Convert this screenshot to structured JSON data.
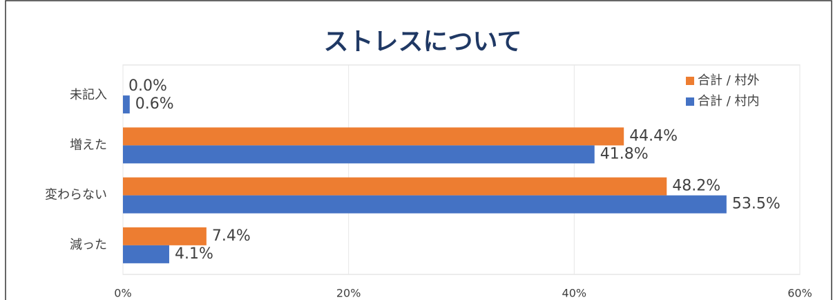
{
  "chart_data": {
    "type": "hbar",
    "title": "ストレスについて",
    "categories": [
      "未記入",
      "増えた",
      "変わらない",
      "減った"
    ],
    "series": [
      {
        "name": "合計 / 村外",
        "color": "#ed7d31",
        "values": [
          0.0,
          44.4,
          48.2,
          7.4
        ],
        "value_labels": [
          "0.0%",
          "44.4%",
          "48.2%",
          "7.4%"
        ]
      },
      {
        "name": "合計 / 村内",
        "color": "#4472c4",
        "values": [
          0.6,
          41.8,
          53.5,
          4.1
        ],
        "value_labels": [
          "0.6%",
          "41.8%",
          "53.5%",
          "4.1%"
        ]
      }
    ],
    "xlim": [
      0,
      60
    ],
    "xticks": [
      {
        "value": 0,
        "label": "0%"
      },
      {
        "value": 20,
        "label": "20%"
      },
      {
        "value": 40,
        "label": "40%"
      },
      {
        "value": 60,
        "label": "60%"
      }
    ],
    "grid": true,
    "legend": "top-right"
  }
}
